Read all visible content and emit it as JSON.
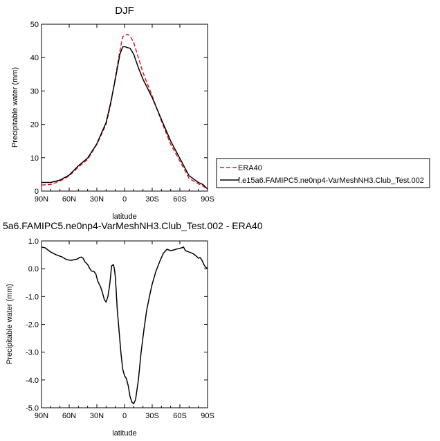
{
  "chart_data": [
    {
      "type": "line",
      "title": "DJF",
      "xlabel": "latitude",
      "ylabel": "Precipitable water (mm)",
      "xlim": [
        -90,
        90
      ],
      "ylim": [
        0,
        50
      ],
      "x_ticks": [
        -90,
        -60,
        -30,
        0,
        30,
        60,
        90
      ],
      "x_tick_labels": [
        "90N",
        "60N",
        "30N",
        "0",
        "30S",
        "60S",
        "90S"
      ],
      "y_ticks": [
        0,
        10,
        20,
        30,
        40,
        50
      ],
      "y_tick_labels": [
        "0",
        "10",
        "20",
        "30",
        "40",
        "50"
      ],
      "legend_position": "right",
      "series": [
        {
          "name": "ERA40",
          "color": "#e31a1c",
          "dash": "dashed",
          "x": [
            -90,
            -80,
            -70,
            -60,
            -50,
            -40,
            -30,
            -20,
            -15,
            -10,
            -5,
            -2,
            0,
            3,
            6,
            10,
            15,
            20,
            30,
            40,
            50,
            60,
            70,
            80,
            85,
            90
          ],
          "y": [
            1.8,
            2.0,
            3.0,
            4.5,
            7.2,
            9.5,
            14.0,
            20.0,
            26.0,
            34.0,
            42.0,
            46.3,
            46.5,
            47.0,
            46.5,
            44.5,
            40.0,
            35.5,
            28.5,
            21.0,
            14.0,
            9.0,
            3.8,
            2.2,
            1.5,
            0.6
          ]
        },
        {
          "name": "f.e15a6.FAMIPC5.ne0np4-VarMeshNH3.Club_Test.002",
          "color": "#000000",
          "dash": "solid",
          "x": [
            -90,
            -80,
            -70,
            -60,
            -50,
            -40,
            -30,
            -20,
            -15,
            -10,
            -5,
            -2,
            0,
            3,
            6,
            10,
            15,
            20,
            30,
            40,
            50,
            60,
            70,
            80,
            85,
            90
          ],
          "y": [
            2.6,
            2.6,
            3.3,
            4.8,
            7.6,
            9.9,
            14.2,
            20.5,
            26.5,
            33.5,
            41.0,
            43.2,
            43.3,
            43.0,
            42.8,
            41.0,
            37.0,
            33.5,
            28.0,
            21.5,
            15.0,
            9.8,
            4.6,
            2.6,
            2.0,
            0.6
          ]
        }
      ]
    },
    {
      "type": "line",
      "title": "5a6.FAMIPC5.ne0np4-VarMeshNH3.Club_Test.002 - ERA40",
      "xlabel": "latitude",
      "ylabel": "Precipitable water (mm)",
      "xlim": [
        -90,
        90
      ],
      "ylim": [
        -5.0,
        1.0
      ],
      "x_ticks": [
        -90,
        -60,
        -30,
        0,
        30,
        60,
        90
      ],
      "x_tick_labels": [
        "90N",
        "60N",
        "30N",
        "0",
        "30S",
        "60S",
        "90S"
      ],
      "y_ticks": [
        1.0,
        0.0,
        -1.0,
        -2.0,
        -3.0,
        -4.0,
        -5.0
      ],
      "y_tick_labels": [
        "1.0",
        "0.0",
        "-1.0",
        "-2.0",
        "-3.0",
        "-4.0",
        "-5.0"
      ],
      "series": [
        {
          "color": "#000000",
          "dash": "solid",
          "x": [
            -90,
            -86,
            -80,
            -74,
            -68,
            -63,
            -58,
            -54,
            -51,
            -49,
            -47,
            -45,
            -43,
            -40,
            -38,
            -36,
            -33,
            -31,
            -29,
            -26,
            -24,
            -22,
            -20,
            -18,
            -16,
            -14,
            -12,
            -11,
            -10,
            -9,
            -8,
            -6,
            -4,
            -2,
            0,
            2,
            4,
            6,
            8,
            10,
            12,
            15,
            18,
            21,
            24,
            27,
            30,
            34,
            38,
            42,
            46,
            50,
            54,
            58,
            62,
            64,
            66,
            70,
            74,
            78,
            80,
            82,
            84,
            86,
            88,
            90
          ],
          "y": [
            0.78,
            0.75,
            0.6,
            0.5,
            0.43,
            0.33,
            0.3,
            0.33,
            0.35,
            0.4,
            0.42,
            0.38,
            0.25,
            0.15,
            0.03,
            -0.08,
            -0.1,
            -0.2,
            -0.45,
            -0.65,
            -0.85,
            -1.1,
            -1.2,
            -1.0,
            -0.55,
            0.1,
            0.15,
            0.0,
            -0.3,
            -0.8,
            -1.4,
            -2.2,
            -3.0,
            -3.6,
            -3.85,
            -3.95,
            -4.2,
            -4.6,
            -4.8,
            -4.85,
            -4.7,
            -4.0,
            -3.0,
            -2.2,
            -1.5,
            -1.0,
            -0.55,
            -0.1,
            0.25,
            0.55,
            0.7,
            0.65,
            0.68,
            0.72,
            0.75,
            0.78,
            0.65,
            0.6,
            0.55,
            0.45,
            0.38,
            0.4,
            0.3,
            0.15,
            0.05,
            0.02
          ]
        }
      ]
    }
  ]
}
